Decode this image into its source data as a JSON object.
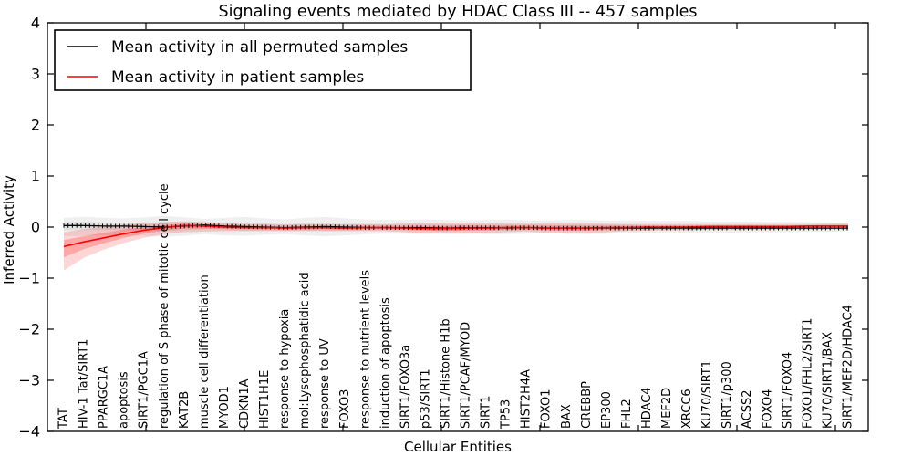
{
  "chart_data": {
    "type": "line",
    "title": "Signaling events mediated by HDAC Class III -- 457 samples",
    "xlabel": "Cellular Entities",
    "ylabel": "Inferred Activity",
    "ylim": [
      -4,
      4
    ],
    "yticks": [
      -4,
      -3,
      -2,
      -1,
      0,
      1,
      2,
      3,
      4
    ],
    "ytick_labels": [
      "−4",
      "−3",
      "−2",
      "−1",
      "0",
      "1",
      "2",
      "3",
      "4"
    ],
    "grid": false,
    "legend_position": "upper left",
    "categories": [
      "TAT",
      "HIV-1 Tat/SIRT1",
      "PPARGC1A",
      "apoptosis",
      "SIRT1/PGC1A",
      "regulation of S phase of mitotic cell cycle",
      "KAT2B",
      "muscle cell differentiation",
      "MYOD1",
      "CDKN1A",
      "HIST1H1E",
      "response to hypoxia",
      "mol:Lysophosphatidic acid",
      "response to UV",
      "FOXO3",
      "response to nutrient levels",
      "induction of apoptosis",
      "SIRT1/FOXO3a",
      "p53/SIRT1",
      "SIRT1/Histone H1b",
      "SIRT1/PCAF/MYOD",
      "SIRT1",
      "TP53",
      "HIST2H4A",
      "FOXO1",
      "BAX",
      "CREBBP",
      "EP300",
      "FHL2",
      "HDAC4",
      "MEF2D",
      "XRCC6",
      "KU70/SIRT1",
      "SIRT1/p300",
      "ACSS2",
      "FOXO4",
      "SIRT1/FOXO4",
      "FOXO1/FHL2/SIRT1",
      "KU70/SIRT1/BAX",
      "SIRT1/MEF2D/HDAC4"
    ],
    "series": [
      {
        "name": "Mean activity in all permuted samples",
        "color": "#000000",
        "band_color": "#808080",
        "values": [
          0.03,
          0.03,
          0.02,
          0.02,
          0.01,
          0.0,
          0.02,
          0.04,
          0.02,
          0.01,
          0.0,
          -0.01,
          0.0,
          0.01,
          0.0,
          -0.01,
          -0.01,
          -0.01,
          -0.01,
          -0.02,
          -0.01,
          -0.01,
          -0.02,
          -0.01,
          -0.02,
          -0.02,
          -0.02,
          -0.02,
          -0.02,
          -0.02,
          -0.02,
          -0.02,
          -0.02,
          -0.02,
          -0.02,
          -0.02,
          -0.02,
          -0.02,
          -0.02,
          -0.02
        ],
        "band_low": [
          -0.18,
          -0.17,
          -0.16,
          -0.16,
          -0.17,
          -0.19,
          -0.17,
          -0.14,
          -0.16,
          -0.17,
          -0.15,
          -0.14,
          -0.16,
          -0.18,
          -0.16,
          -0.14,
          -0.13,
          -0.13,
          -0.14,
          -0.13,
          -0.13,
          -0.14,
          -0.14,
          -0.13,
          -0.12,
          -0.13,
          -0.14,
          -0.13,
          -0.12,
          -0.12,
          -0.11,
          -0.12,
          -0.11,
          -0.11,
          -0.1,
          -0.1,
          -0.1,
          -0.09,
          -0.09,
          -0.08
        ],
        "band_high": [
          0.18,
          0.2,
          0.18,
          0.17,
          0.19,
          0.22,
          0.19,
          0.16,
          0.18,
          0.2,
          0.17,
          0.15,
          0.18,
          0.2,
          0.17,
          0.15,
          0.14,
          0.14,
          0.15,
          0.14,
          0.13,
          0.14,
          0.15,
          0.13,
          0.13,
          0.14,
          0.14,
          0.13,
          0.13,
          0.12,
          0.12,
          0.12,
          0.11,
          0.11,
          0.11,
          0.1,
          0.1,
          0.1,
          0.09,
          0.09
        ]
      },
      {
        "name": "Mean activity in patient samples",
        "color": "#ff0000",
        "band_color": "#ff0000",
        "values": [
          -0.38,
          -0.29,
          -0.21,
          -0.13,
          -0.06,
          -0.01,
          0.03,
          0.02,
          0.0,
          -0.01,
          -0.01,
          -0.02,
          -0.01,
          -0.01,
          -0.02,
          -0.01,
          -0.01,
          -0.02,
          -0.03,
          -0.03,
          -0.02,
          -0.02,
          -0.01,
          -0.01,
          -0.02,
          -0.02,
          -0.02,
          -0.01,
          -0.01,
          0.0,
          0.0,
          0.0,
          0.01,
          0.01,
          0.01,
          0.01,
          0.01,
          0.02,
          0.02,
          0.02
        ],
        "band_low": [
          -0.85,
          -0.6,
          -0.44,
          -0.31,
          -0.21,
          -0.14,
          -0.1,
          -0.09,
          -0.08,
          -0.08,
          -0.08,
          -0.08,
          -0.08,
          -0.08,
          -0.08,
          -0.08,
          -0.08,
          -0.1,
          -0.12,
          -0.13,
          -0.13,
          -0.12,
          -0.1,
          -0.09,
          -0.11,
          -0.13,
          -0.12,
          -0.1,
          -0.08,
          -0.07,
          -0.06,
          -0.06,
          -0.05,
          -0.05,
          -0.05,
          -0.04,
          -0.04,
          -0.04,
          -0.03,
          -0.03
        ],
        "band_high": [
          -0.1,
          -0.04,
          0.01,
          0.05,
          0.08,
          0.1,
          0.11,
          0.1,
          0.08,
          0.06,
          0.06,
          0.05,
          0.06,
          0.06,
          0.05,
          0.06,
          0.06,
          0.07,
          0.08,
          0.09,
          0.09,
          0.08,
          0.07,
          0.07,
          0.08,
          0.09,
          0.08,
          0.07,
          0.06,
          0.06,
          0.06,
          0.06,
          0.06,
          0.06,
          0.06,
          0.06,
          0.06,
          0.06,
          0.07,
          0.07
        ]
      }
    ]
  }
}
